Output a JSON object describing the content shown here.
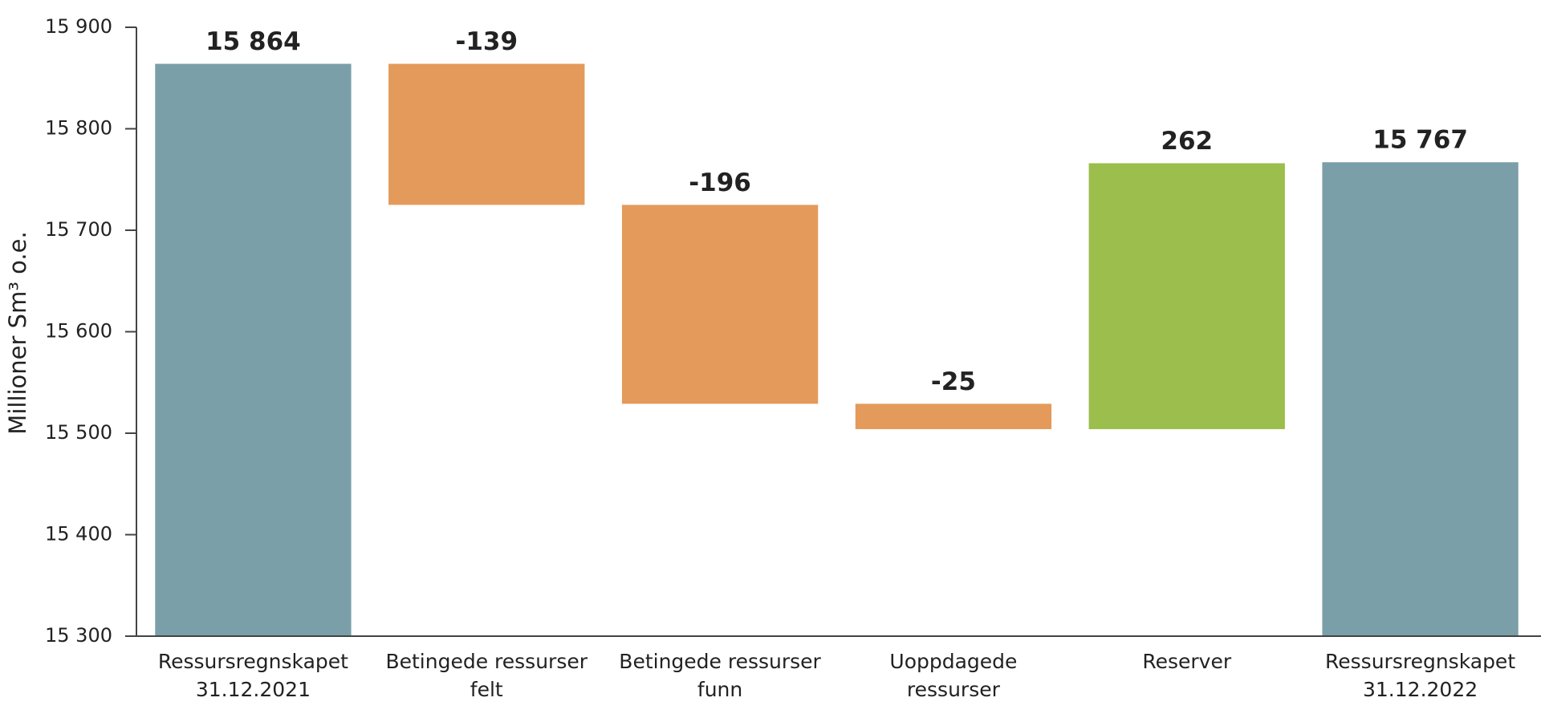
{
  "chart_data": {
    "type": "waterfall",
    "y_label": "Millioner Sm³ o.e.",
    "categories": [
      [
        "Ressursregnskapet",
        "31.12.2021"
      ],
      [
        "Betingede ressurser",
        "felt"
      ],
      [
        "Betingede ressurser",
        "funn"
      ],
      [
        "Uoppdagede",
        "ressurser"
      ],
      [
        "Reserver"
      ],
      [
        "Ressursregnskapet",
        "31.12.2022"
      ]
    ],
    "values": [
      15864,
      -139,
      -196,
      -25,
      262,
      15767
    ],
    "value_labels": [
      "15 864",
      "-139",
      "-196",
      "-25",
      "262",
      "15 767"
    ],
    "measure": [
      "total",
      "relative",
      "relative",
      "relative",
      "relative",
      "total"
    ],
    "colors": {
      "total": "#7a9fa8",
      "decrease": "#e39a5a",
      "increase": "#9bbe4c"
    },
    "ylim": [
      15300,
      15900
    ],
    "yticks": [
      {
        "value": 15300,
        "label": "15 300"
      },
      {
        "value": 15400,
        "label": "15 400"
      },
      {
        "value": 15500,
        "label": "15 500"
      },
      {
        "value": 15600,
        "label": "15 600"
      },
      {
        "value": 15700,
        "label": "15 700"
      },
      {
        "value": 15800,
        "label": "15 800"
      },
      {
        "value": 15900,
        "label": "15 900"
      }
    ],
    "grid": false
  }
}
